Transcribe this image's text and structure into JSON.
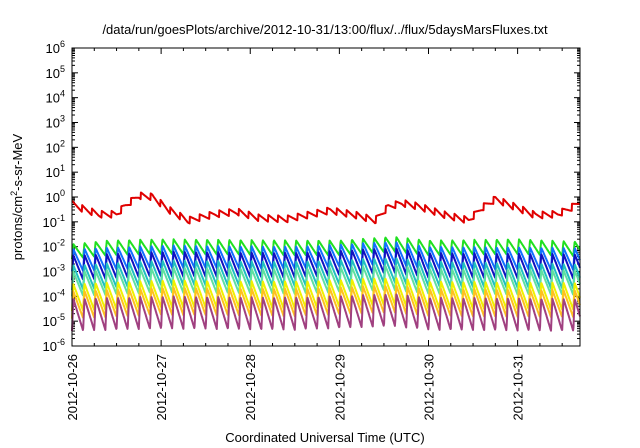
{
  "chart_data": {
    "type": "line",
    "title": "/data/run/goesPlots/archive/2012-10-31/13:00/flux/../flux/5daysMarsFluxes.txt",
    "xlabel": "Coordinated Universal Time (UTC)",
    "ylabel_parts": {
      "pre": "protons/cm",
      "sup": "2",
      "post": "-s-sr-MeV"
    },
    "x_ticks": [
      "2012-10-26",
      "2012-10-27",
      "2012-10-28",
      "2012-10-29",
      "2012-10-30",
      "2012-10-31"
    ],
    "x_range_days": [
      0,
      5.7
    ],
    "y_scale": "log",
    "y_ticks": [
      {
        "base": "10",
        "exp": "6"
      },
      {
        "base": "10",
        "exp": "5"
      },
      {
        "base": "10",
        "exp": "4"
      },
      {
        "base": "10",
        "exp": "3"
      },
      {
        "base": "10",
        "exp": "2"
      },
      {
        "base": "10",
        "exp": "1"
      },
      {
        "base": "10",
        "exp": "0"
      },
      {
        "base": "10",
        "exp": "-1"
      },
      {
        "base": "10",
        "exp": "-2"
      },
      {
        "base": "10",
        "exp": "-3"
      },
      {
        "base": "10",
        "exp": "-4"
      },
      {
        "base": "10",
        "exp": "-5"
      },
      {
        "base": "10",
        "exp": "-6"
      }
    ],
    "y_range_exp": [
      -6,
      6
    ],
    "grid": false,
    "legend": "none",
    "series": [
      {
        "color": "#e00000",
        "kind": "smooth",
        "period": 0.11,
        "peak_log": [
          [
            0,
            -0.15
          ],
          [
            0.1,
            -0.3
          ],
          [
            0.3,
            -0.55
          ],
          [
            0.5,
            -0.55
          ],
          [
            0.6,
            -0.2
          ],
          [
            0.75,
            0.2
          ],
          [
            0.9,
            0.15
          ],
          [
            1.1,
            -0.4
          ],
          [
            1.3,
            -0.8
          ],
          [
            1.6,
            -0.55
          ],
          [
            1.85,
            -0.45
          ],
          [
            2.1,
            -0.7
          ],
          [
            2.4,
            -0.75
          ],
          [
            2.7,
            -0.55
          ],
          [
            2.9,
            -0.4
          ],
          [
            3.2,
            -0.6
          ],
          [
            3.4,
            -0.8
          ],
          [
            3.55,
            -0.25
          ],
          [
            3.7,
            -0.1
          ],
          [
            3.9,
            -0.25
          ],
          [
            4.2,
            -0.6
          ],
          [
            4.45,
            -0.8
          ],
          [
            4.6,
            -0.3
          ],
          [
            4.75,
            0.05
          ],
          [
            5.0,
            -0.3
          ],
          [
            5.2,
            -0.6
          ],
          [
            5.45,
            -0.55
          ],
          [
            5.6,
            -0.3
          ],
          [
            5.7,
            -0.05
          ]
        ],
        "drop_log": 0.28
      },
      {
        "color": "#20e020",
        "kind": "saw",
        "period": 0.125,
        "peak_log": [
          [
            0,
            -1.9
          ],
          [
            0.4,
            -1.75
          ],
          [
            1,
            -1.7
          ],
          [
            2.5,
            -1.75
          ],
          [
            3,
            -1.75
          ],
          [
            3.6,
            -1.6
          ],
          [
            4,
            -1.75
          ],
          [
            5,
            -1.7
          ],
          [
            5.7,
            -1.8
          ]
        ],
        "drop_log": 0.6
      },
      {
        "color": "#1070ff",
        "kind": "saw",
        "period": 0.125,
        "peak_log": [
          [
            0,
            -2.1
          ],
          [
            1,
            -1.95
          ],
          [
            2.5,
            -2.0
          ],
          [
            3.6,
            -1.8
          ],
          [
            4,
            -2.0
          ],
          [
            5.7,
            -2.05
          ]
        ],
        "drop_log": 0.9
      },
      {
        "color": "#1010c0",
        "kind": "saw",
        "period": 0.125,
        "peak_log": [
          [
            0,
            -2.35
          ],
          [
            1,
            -2.2
          ],
          [
            2.5,
            -2.25
          ],
          [
            3.6,
            -2.05
          ],
          [
            4,
            -2.25
          ],
          [
            5.7,
            -2.3
          ]
        ],
        "drop_log": 1.0
      },
      {
        "color": "#20c0c0",
        "kind": "saw",
        "period": 0.125,
        "peak_log": [
          [
            0,
            -2.75
          ],
          [
            1,
            -2.55
          ],
          [
            2.5,
            -2.6
          ],
          [
            3.6,
            -2.45
          ],
          [
            4,
            -2.6
          ],
          [
            5.7,
            -2.7
          ]
        ],
        "drop_log": 1.0
      },
      {
        "color": "#60e0a0",
        "kind": "saw",
        "period": 0.125,
        "peak_log": [
          [
            0,
            -3.0
          ],
          [
            1,
            -2.85
          ],
          [
            2.5,
            -2.9
          ],
          [
            3.6,
            -2.75
          ],
          [
            4,
            -2.9
          ],
          [
            5.7,
            -2.95
          ]
        ],
        "drop_log": 1.0
      },
      {
        "color": "#f0f000",
        "kind": "saw",
        "period": 0.125,
        "peak_log": [
          [
            0,
            -3.5
          ],
          [
            1,
            -3.35
          ],
          [
            2.5,
            -3.4
          ],
          [
            3.6,
            -3.25
          ],
          [
            4,
            -3.4
          ],
          [
            5.7,
            -3.45
          ]
        ],
        "drop_log": 1.1
      },
      {
        "color": "#ffc020",
        "kind": "saw",
        "period": 0.125,
        "peak_log": [
          [
            0,
            -3.8
          ],
          [
            1,
            -3.65
          ],
          [
            2.5,
            -3.7
          ],
          [
            3.6,
            -3.55
          ],
          [
            4,
            -3.7
          ],
          [
            5.7,
            -3.75
          ]
        ],
        "drop_log": 1.1
      },
      {
        "color": "#a04080",
        "kind": "saw",
        "period": 0.125,
        "peak_log": [
          [
            0,
            -4.1
          ],
          [
            1,
            -4.0
          ],
          [
            2.5,
            -4.05
          ],
          [
            3.6,
            -3.9
          ],
          [
            4,
            -4.05
          ],
          [
            5.7,
            -4.1
          ]
        ],
        "drop_log": 1.3
      }
    ]
  }
}
